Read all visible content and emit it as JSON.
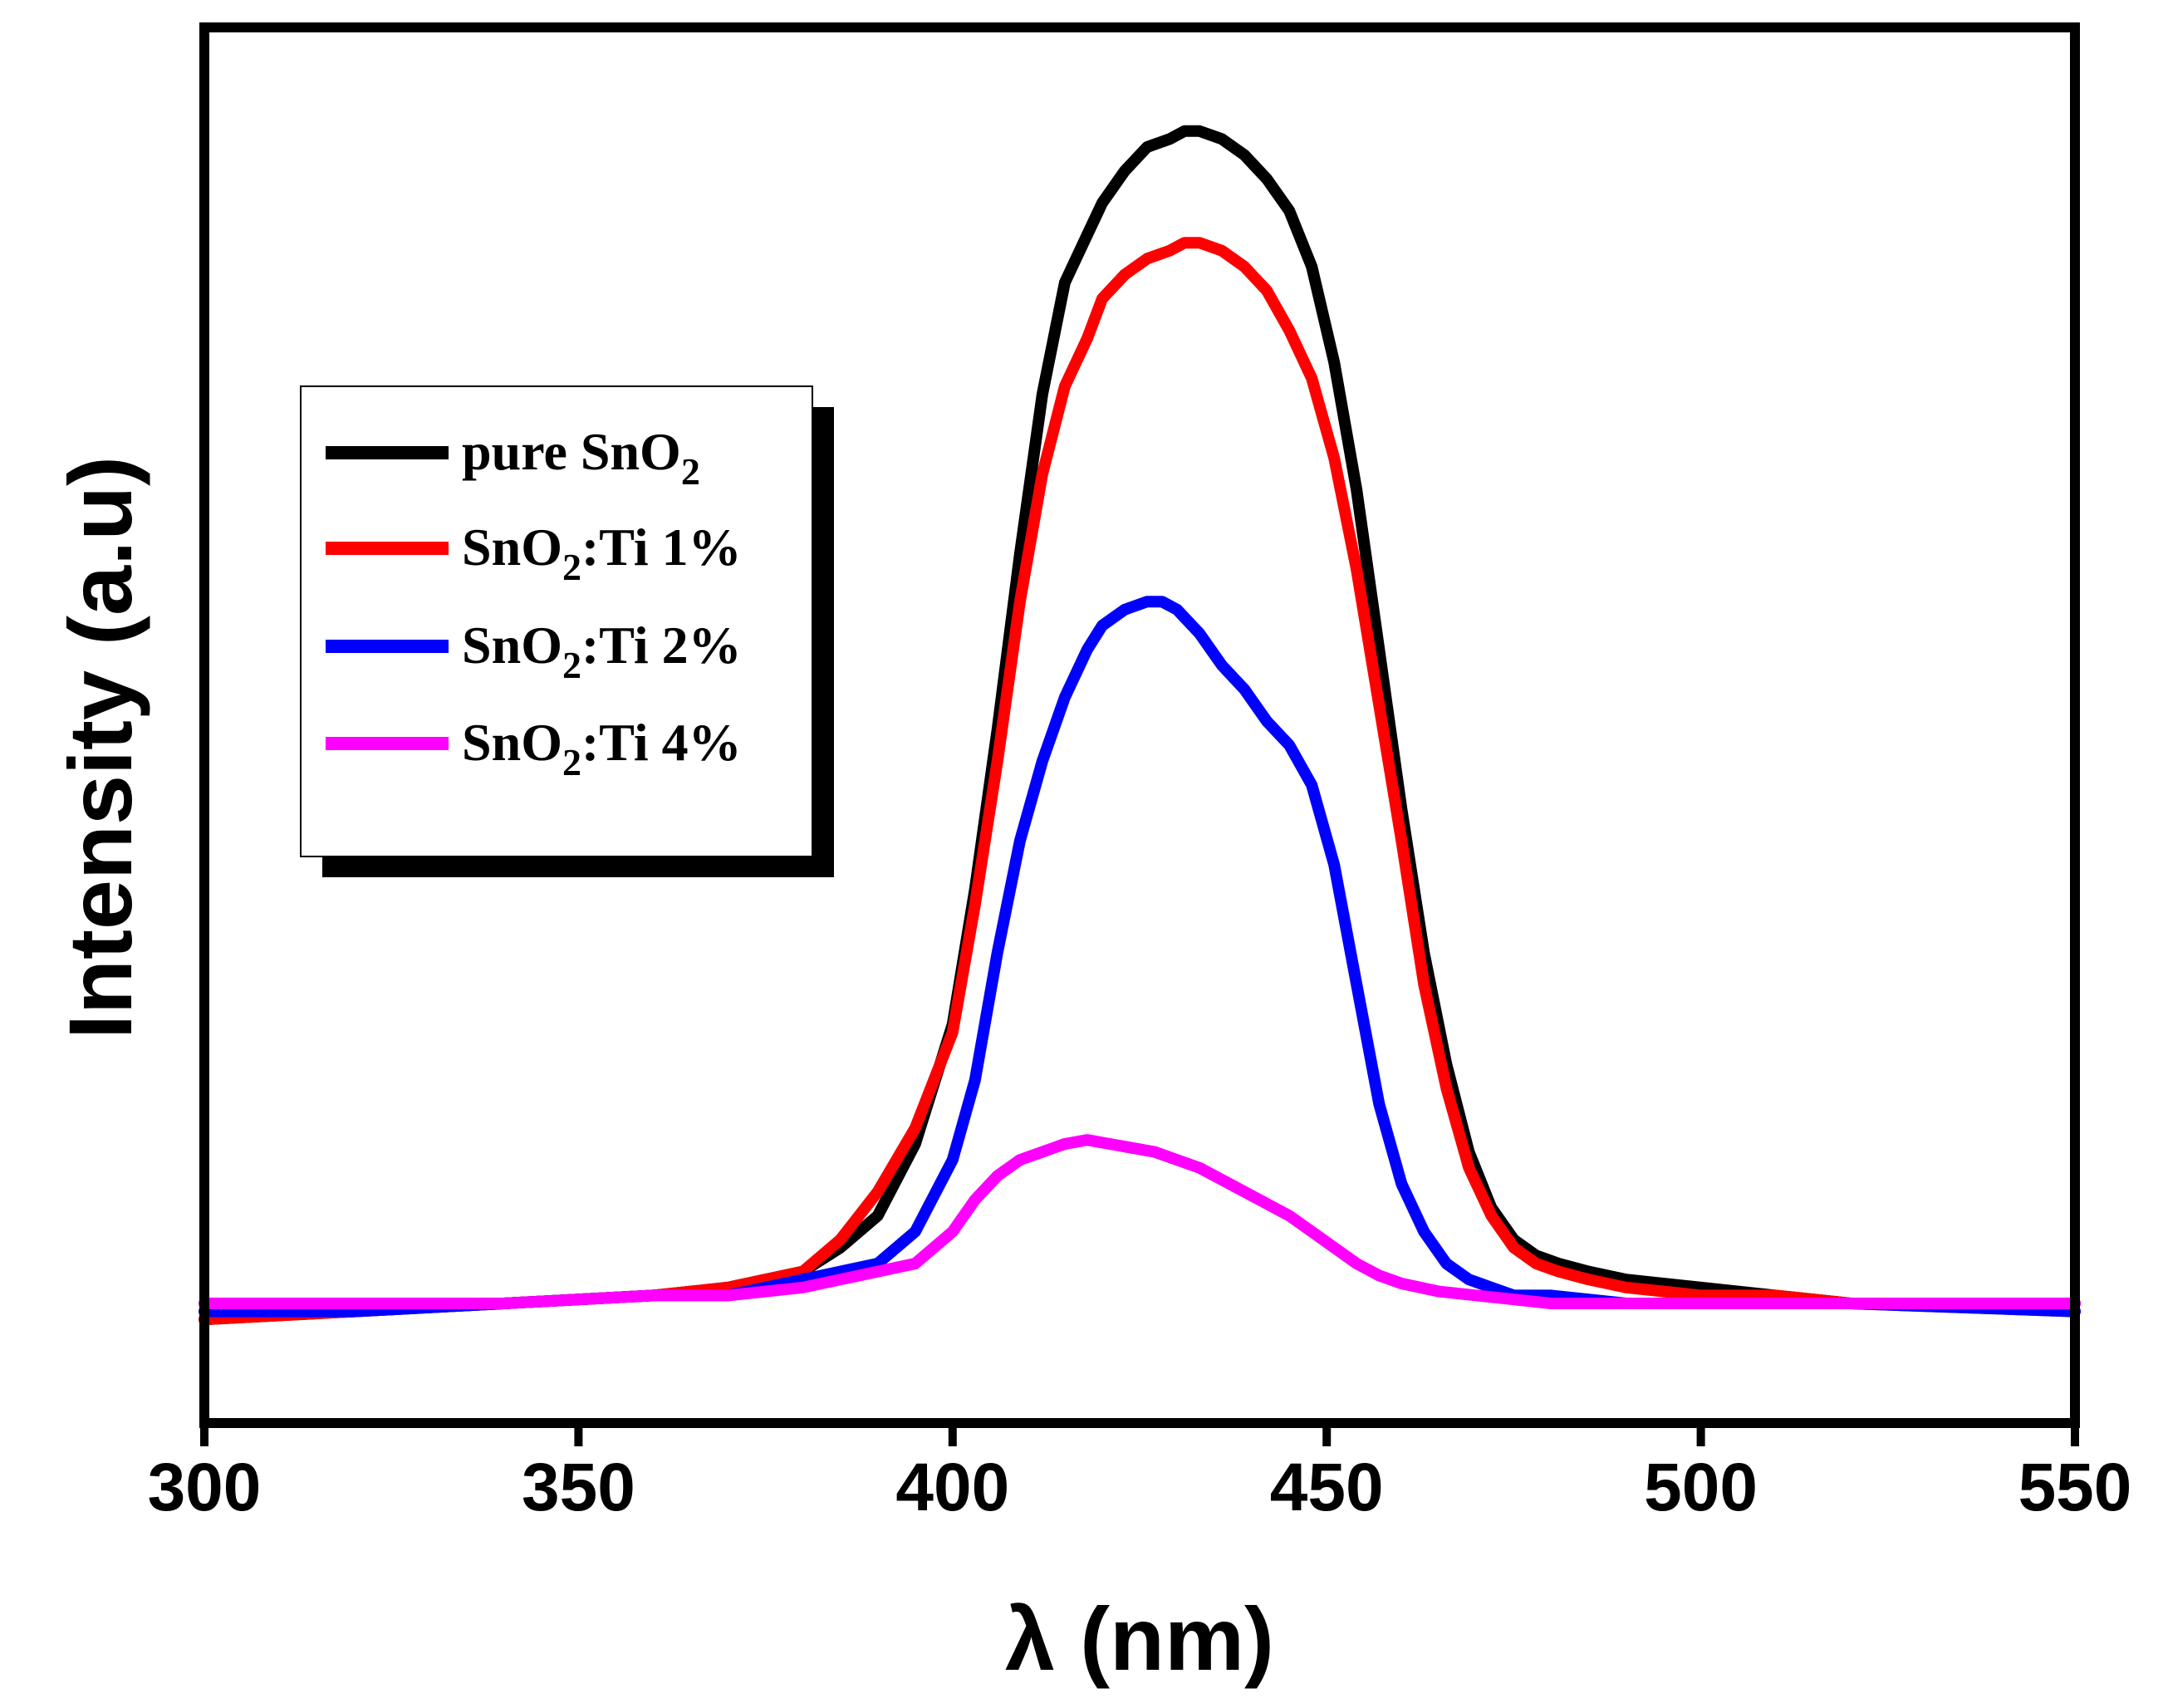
{
  "chart_data": {
    "type": "line",
    "title": "",
    "xlabel": "λ (nm)",
    "ylabel": "Intensity (a.u)",
    "xlim": [
      300,
      550
    ],
    "ylim": [
      -15,
      160
    ],
    "xticks": [
      "300",
      "350",
      "400",
      "450",
      "500",
      "550"
    ],
    "yticks_shown": false,
    "grid": false,
    "legend_position": "upper-left",
    "series": [
      {
        "name": "pure SnO2",
        "legend_main": "pure SnO",
        "legend_sub": "2",
        "legend_rest": "",
        "color": "#000000",
        "x": [
          300,
          320,
          340,
          360,
          370,
          380,
          385,
          390,
          395,
          400,
          403,
          406,
          409,
          412,
          415,
          418,
          420,
          423,
          426,
          429,
          431,
          433,
          436,
          439,
          442,
          445,
          448,
          451,
          454,
          457,
          460,
          463,
          466,
          469,
          472,
          475,
          478,
          481,
          485,
          490,
          500,
          510,
          520,
          550
        ],
        "y": [
          -2,
          -1,
          0,
          1,
          2,
          4,
          7,
          11,
          20,
          35,
          52,
          72,
          94,
          114,
          128,
          134,
          138,
          142,
          145,
          146,
          147,
          147,
          146,
          144,
          141,
          137,
          130,
          118,
          102,
          82,
          62,
          44,
          30,
          19,
          12,
          8,
          6,
          5,
          4,
          3,
          2,
          1,
          0,
          0
        ]
      },
      {
        "name": "SnO2:Ti 1%",
        "legend_main": "SnO",
        "legend_sub": "2",
        "legend_rest": ":Ti  1%",
        "color": "#ff0000",
        "x": [
          300,
          320,
          340,
          360,
          370,
          380,
          385,
          390,
          395,
          400,
          403,
          406,
          409,
          412,
          415,
          418,
          420,
          423,
          426,
          429,
          431,
          433,
          436,
          439,
          442,
          445,
          448,
          451,
          454,
          457,
          460,
          463,
          466,
          469,
          472,
          475,
          478,
          481,
          485,
          490,
          500,
          510,
          520,
          550
        ],
        "y": [
          -2,
          -1,
          0,
          1,
          2,
          4,
          8,
          14,
          22,
          34,
          50,
          68,
          88,
          104,
          115,
          121,
          126,
          129,
          131,
          132,
          133,
          133,
          132,
          130,
          127,
          122,
          116,
          106,
          92,
          75,
          58,
          40,
          27,
          17,
          11,
          7,
          5,
          4,
          3,
          2,
          1,
          1,
          0,
          -1
        ]
      },
      {
        "name": "SnO2:Ti 2%",
        "legend_main": "SnO",
        "legend_sub": "2",
        "legend_rest": ":Ti  2%",
        "color": "#0000ff",
        "x": [
          300,
          320,
          340,
          360,
          370,
          380,
          385,
          390,
          395,
          400,
          403,
          406,
          409,
          412,
          415,
          418,
          420,
          423,
          426,
          428,
          430,
          433,
          436,
          439,
          442,
          445,
          448,
          451,
          454,
          457,
          460,
          463,
          466,
          469,
          472,
          475,
          480,
          490,
          500,
          510,
          520,
          550
        ],
        "y": [
          -1,
          -1,
          0,
          1,
          1,
          3,
          4,
          5,
          9,
          18,
          28,
          44,
          58,
          68,
          76,
          82,
          85,
          87,
          88,
          88,
          87,
          84,
          80,
          77,
          73,
          70,
          65,
          55,
          40,
          25,
          15,
          9,
          5,
          3,
          2,
          1,
          1,
          0,
          0,
          0,
          0,
          -1
        ]
      },
      {
        "name": "SnO2:Ti 4%",
        "legend_main": "SnO",
        "legend_sub": "2",
        "legend_rest": ":Ti  4%",
        "color": "#ff00ff",
        "x": [
          300,
          320,
          340,
          360,
          370,
          380,
          385,
          390,
          395,
          400,
          403,
          406,
          409,
          412,
          415,
          418,
          421,
          424,
          427,
          430,
          433,
          436,
          439,
          442,
          445,
          448,
          451,
          454,
          457,
          460,
          465,
          470,
          475,
          480,
          490,
          500,
          510,
          520,
          550
        ],
        "y": [
          0,
          0,
          0,
          1,
          1,
          2,
          3,
          4,
          5,
          9,
          13,
          16,
          18,
          19,
          20,
          20.5,
          20,
          19.5,
          19,
          18,
          17,
          15.5,
          14,
          12.5,
          11,
          9,
          7,
          5,
          3.5,
          2.5,
          1.5,
          1,
          0.5,
          0,
          0,
          0,
          0,
          0,
          0
        ]
      }
    ]
  }
}
